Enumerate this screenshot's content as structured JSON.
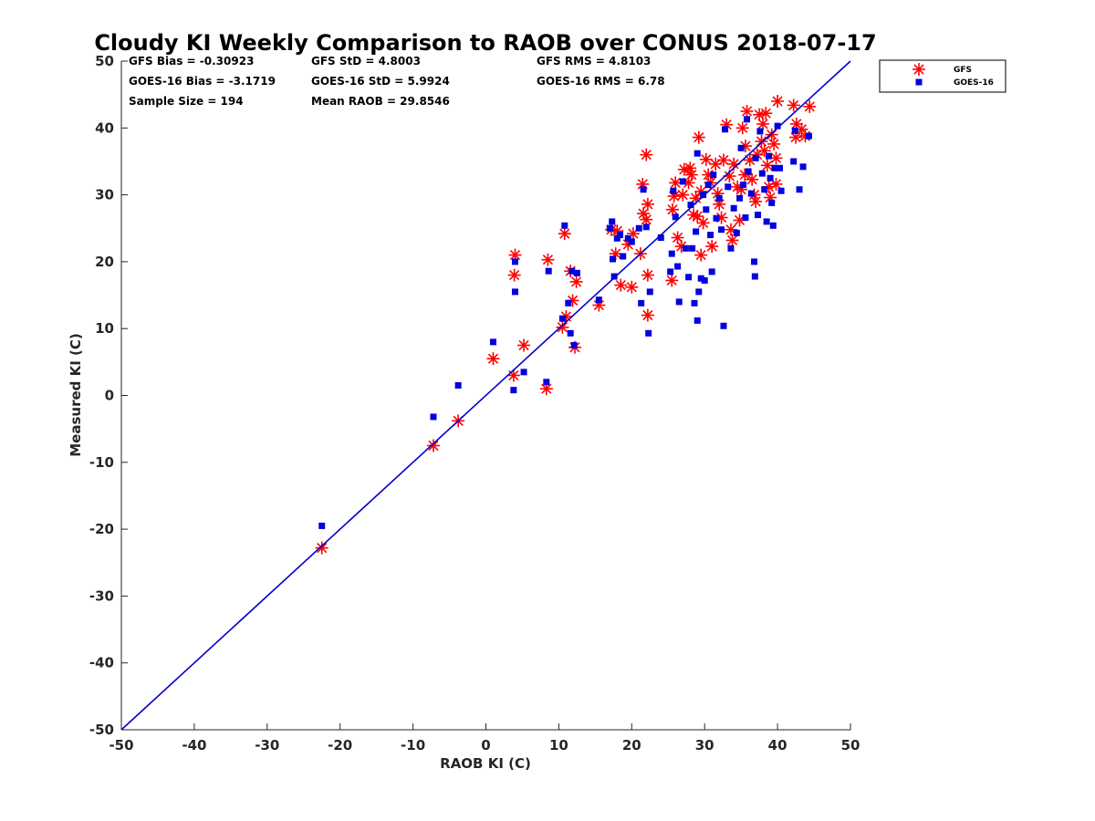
{
  "colors": {
    "gfs": "#ff0000",
    "goes": "#0000e0",
    "line": "#0000cc",
    "axis": "#262626"
  },
  "chart_data": {
    "type": "scatter",
    "title": "Cloudy KI Weekly Comparison to RAOB over CONUS 2018-07-17",
    "xlabel": "RAOB KI (C)",
    "ylabel": "Measured KI (C)",
    "xlim": [
      -50,
      50
    ],
    "ylim": [
      -50,
      50
    ],
    "xticks": [
      "-50",
      "-40",
      "-30",
      "-20",
      "-10",
      "0",
      "10",
      "20",
      "30",
      "40",
      "50"
    ],
    "yticks": [
      "50",
      "40",
      "30",
      "20",
      "10",
      "0",
      "-10",
      "-20",
      "-30",
      "-40",
      "-50"
    ],
    "grid": false,
    "legend_position": "outside top-right",
    "reference_line": {
      "from": [
        -50,
        -50
      ],
      "to": [
        50,
        50
      ]
    },
    "stats": [
      "GFS Bias = -0.30923",
      "GFS StD = 4.8003",
      "GFS RMS = 4.8103",
      "GOES-16 Bias = -3.1719",
      "GOES-16 StD = 5.9924",
      "GOES-16 RMS = 6.78",
      "Sample Size = 194",
      "Mean RAOB = 29.8546"
    ],
    "series": [
      {
        "name": "GFS",
        "marker": "asterisk",
        "points": [
          [
            -22.5,
            -22.8
          ],
          [
            -7.2,
            -7.5
          ],
          [
            -3.8,
            -3.8
          ],
          [
            1.0,
            5.5
          ],
          [
            3.8,
            3.0
          ],
          [
            4.0,
            21.0
          ],
          [
            3.9,
            18.0
          ],
          [
            5.2,
            7.5
          ],
          [
            8.3,
            1.0
          ],
          [
            8.5,
            20.3
          ],
          [
            10.5,
            10.2
          ],
          [
            10.8,
            24.2
          ],
          [
            11.0,
            11.8
          ],
          [
            11.6,
            18.6
          ],
          [
            11.9,
            14.2
          ],
          [
            12.2,
            7.2
          ],
          [
            12.4,
            17.0
          ],
          [
            15.5,
            13.5
          ],
          [
            17.2,
            24.8
          ],
          [
            17.8,
            21.2
          ],
          [
            18.0,
            24.6
          ],
          [
            18.5,
            16.5
          ],
          [
            19.5,
            22.6
          ],
          [
            20.0,
            16.2
          ],
          [
            20.2,
            24.2
          ],
          [
            21.2,
            21.2
          ],
          [
            21.5,
            31.6
          ],
          [
            21.6,
            27.2
          ],
          [
            22.0,
            36.0
          ],
          [
            22.0,
            26.3
          ],
          [
            22.2,
            28.6
          ],
          [
            22.2,
            18.0
          ],
          [
            22.2,
            12.0
          ],
          [
            25.5,
            17.2
          ],
          [
            25.6,
            27.8
          ],
          [
            25.8,
            29.8
          ],
          [
            26.0,
            31.8
          ],
          [
            26.3,
            23.6
          ],
          [
            26.8,
            22.3
          ],
          [
            27.0,
            30.0
          ],
          [
            27.2,
            33.8
          ],
          [
            27.8,
            31.8
          ],
          [
            28.0,
            34.0
          ],
          [
            28.2,
            33.0
          ],
          [
            28.5,
            27.0
          ],
          [
            28.8,
            29.5
          ],
          [
            29.0,
            26.8
          ],
          [
            29.2,
            38.6
          ],
          [
            29.5,
            30.5
          ],
          [
            29.5,
            21.0
          ],
          [
            29.8,
            25.8
          ],
          [
            30.2,
            35.3
          ],
          [
            30.5,
            33.0
          ],
          [
            30.8,
            31.8
          ],
          [
            31.0,
            22.3
          ],
          [
            31.5,
            34.6
          ],
          [
            31.8,
            30.2
          ],
          [
            32.0,
            28.6
          ],
          [
            32.3,
            26.6
          ],
          [
            32.6,
            35.2
          ],
          [
            33.0,
            40.5
          ],
          [
            33.4,
            32.8
          ],
          [
            33.6,
            24.8
          ],
          [
            33.8,
            23.2
          ],
          [
            34.0,
            34.6
          ],
          [
            34.5,
            31.2
          ],
          [
            34.8,
            26.2
          ],
          [
            35.0,
            30.8
          ],
          [
            35.2,
            40.0
          ],
          [
            35.5,
            33.0
          ],
          [
            35.6,
            37.3
          ],
          [
            35.8,
            42.5
          ],
          [
            36.2,
            35.2
          ],
          [
            36.5,
            32.3
          ],
          [
            36.8,
            30.0
          ],
          [
            37.0,
            29.0
          ],
          [
            37.2,
            36.0
          ],
          [
            37.5,
            42.0
          ],
          [
            37.8,
            38.0
          ],
          [
            38.0,
            40.6
          ],
          [
            38.2,
            36.6
          ],
          [
            38.4,
            42.2
          ],
          [
            38.6,
            34.4
          ],
          [
            38.8,
            31.2
          ],
          [
            39.0,
            29.6
          ],
          [
            39.2,
            39.0
          ],
          [
            39.5,
            37.6
          ],
          [
            39.8,
            35.5
          ],
          [
            39.8,
            31.6
          ],
          [
            40.0,
            44.0
          ],
          [
            42.2,
            43.4
          ],
          [
            42.5,
            38.6
          ],
          [
            42.6,
            40.6
          ],
          [
            43.3,
            39.8
          ],
          [
            43.8,
            38.8
          ],
          [
            44.4,
            43.2
          ]
        ]
      },
      {
        "name": "GOES-16",
        "marker": "square",
        "points": [
          [
            -22.5,
            -19.5
          ],
          [
            -7.2,
            -3.2
          ],
          [
            -3.8,
            1.5
          ],
          [
            1.0,
            8.0
          ],
          [
            3.8,
            0.8
          ],
          [
            4.0,
            20.0
          ],
          [
            4.0,
            15.5
          ],
          [
            5.2,
            3.5
          ],
          [
            8.3,
            2.0
          ],
          [
            8.6,
            18.6
          ],
          [
            10.5,
            11.5
          ],
          [
            10.8,
            25.4
          ],
          [
            11.3,
            13.8
          ],
          [
            11.6,
            9.3
          ],
          [
            11.8,
            18.6
          ],
          [
            12.1,
            7.5
          ],
          [
            12.5,
            18.3
          ],
          [
            15.5,
            14.3
          ],
          [
            17.0,
            25.0
          ],
          [
            17.3,
            26.0
          ],
          [
            17.4,
            20.4
          ],
          [
            17.6,
            17.8
          ],
          [
            18.0,
            23.5
          ],
          [
            18.4,
            24.0
          ],
          [
            18.8,
            20.8
          ],
          [
            19.5,
            23.5
          ],
          [
            20.0,
            23.0
          ],
          [
            21.0,
            25.0
          ],
          [
            21.3,
            13.8
          ],
          [
            21.6,
            30.8
          ],
          [
            22.0,
            25.2
          ],
          [
            22.3,
            9.3
          ],
          [
            22.5,
            15.5
          ],
          [
            24.0,
            23.6
          ],
          [
            25.3,
            18.5
          ],
          [
            25.5,
            21.2
          ],
          [
            25.7,
            30.6
          ],
          [
            26.0,
            26.7
          ],
          [
            26.3,
            19.3
          ],
          [
            26.5,
            14.0
          ],
          [
            27.0,
            32.0
          ],
          [
            27.4,
            22.0
          ],
          [
            27.8,
            17.7
          ],
          [
            28.1,
            28.5
          ],
          [
            28.3,
            22.0
          ],
          [
            28.6,
            13.8
          ],
          [
            28.8,
            24.5
          ],
          [
            29.0,
            11.2
          ],
          [
            29.0,
            36.2
          ],
          [
            29.2,
            15.5
          ],
          [
            29.5,
            17.5
          ],
          [
            29.8,
            30.0
          ],
          [
            30.0,
            17.2
          ],
          [
            30.2,
            27.8
          ],
          [
            30.5,
            31.5
          ],
          [
            30.8,
            24.0
          ],
          [
            31.0,
            18.5
          ],
          [
            31.2,
            33.0
          ],
          [
            31.6,
            26.5
          ],
          [
            32.0,
            29.5
          ],
          [
            32.3,
            24.8
          ],
          [
            32.6,
            10.4
          ],
          [
            32.8,
            39.8
          ],
          [
            33.2,
            31.2
          ],
          [
            33.6,
            22.0
          ],
          [
            34.0,
            28.0
          ],
          [
            34.4,
            24.3
          ],
          [
            34.8,
            29.5
          ],
          [
            35.0,
            37.0
          ],
          [
            35.3,
            31.5
          ],
          [
            35.6,
            26.6
          ],
          [
            35.8,
            41.3
          ],
          [
            36.0,
            33.5
          ],
          [
            36.4,
            30.2
          ],
          [
            36.8,
            20.0
          ],
          [
            36.9,
            17.8
          ],
          [
            37.0,
            35.5
          ],
          [
            37.3,
            27.0
          ],
          [
            37.6,
            39.5
          ],
          [
            37.9,
            33.2
          ],
          [
            38.2,
            30.8
          ],
          [
            38.5,
            26.0
          ],
          [
            38.8,
            35.8
          ],
          [
            39.0,
            32.5
          ],
          [
            39.2,
            28.8
          ],
          [
            39.4,
            25.4
          ],
          [
            39.6,
            34.0
          ],
          [
            40.0,
            40.3
          ],
          [
            40.3,
            34.0
          ],
          [
            40.5,
            30.6
          ],
          [
            42.2,
            35.0
          ],
          [
            42.4,
            39.6
          ],
          [
            43.0,
            30.8
          ],
          [
            43.5,
            34.2
          ],
          [
            44.3,
            38.8
          ]
        ]
      }
    ]
  }
}
